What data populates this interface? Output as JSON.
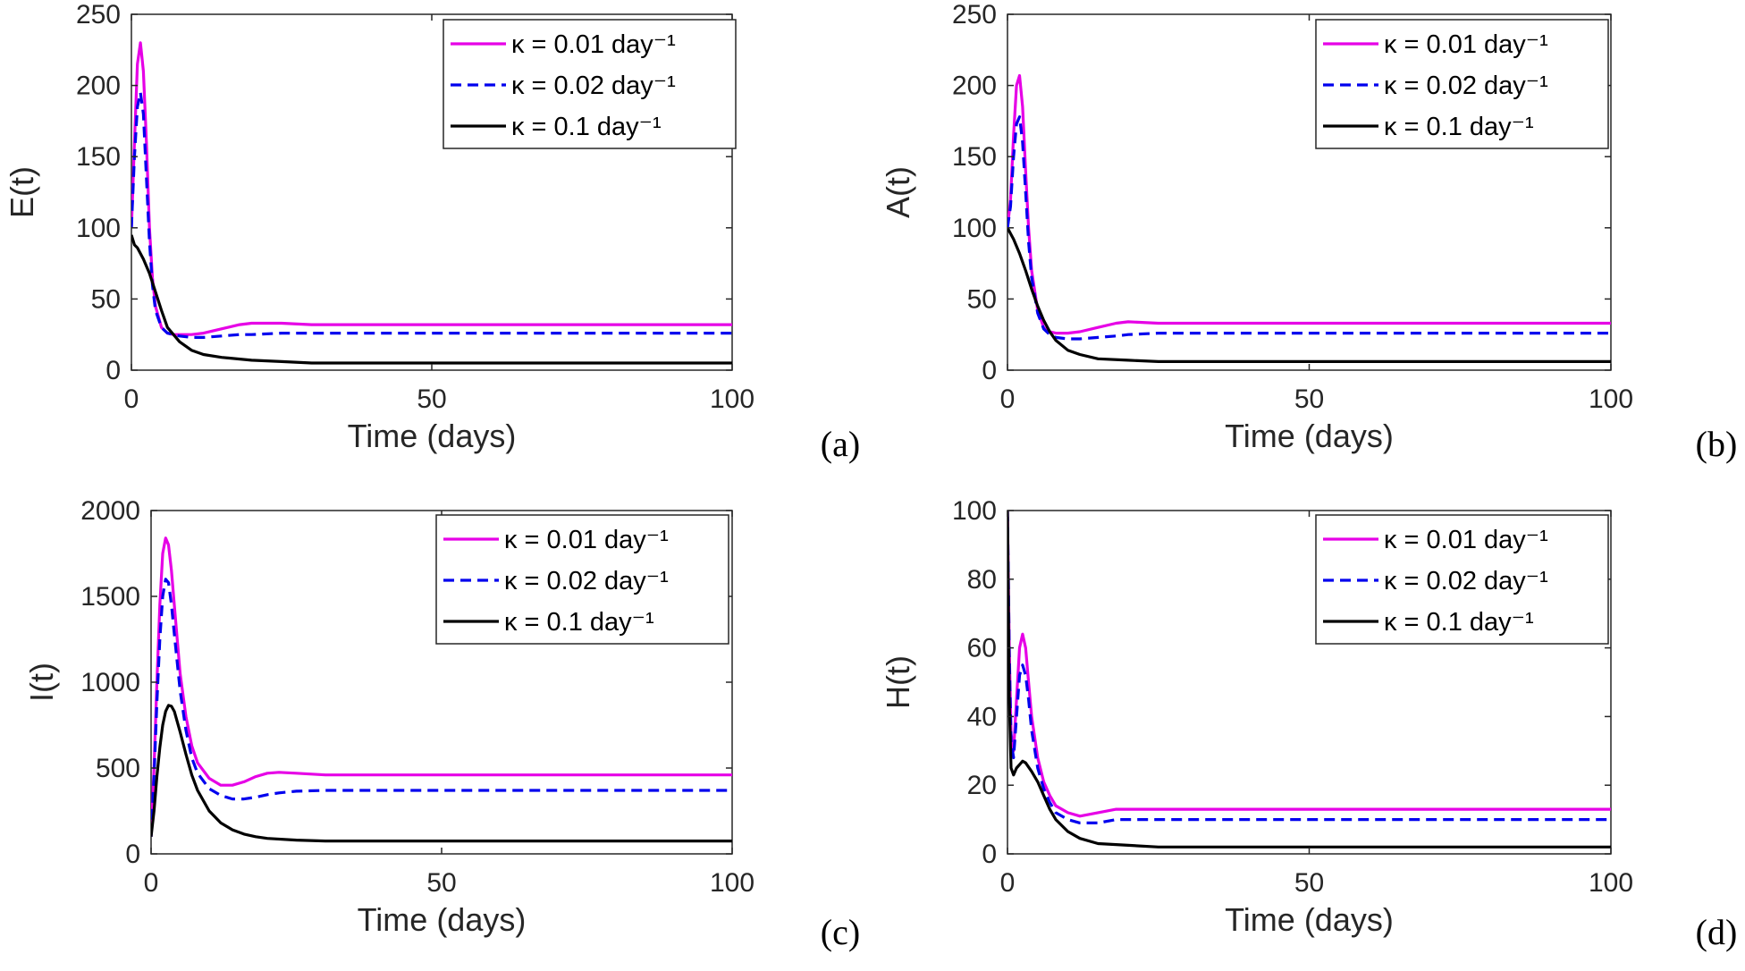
{
  "chart_data": [
    {
      "type": "line",
      "panel_label": "(a)",
      "xlabel": "Time (days)",
      "ylabel": "E(t)",
      "xlim": [
        0,
        100
      ],
      "ylim": [
        0,
        250
      ],
      "xticks": [
        0,
        50,
        100
      ],
      "yticks": [
        0,
        50,
        100,
        150,
        200,
        250
      ],
      "legend": "top-right",
      "series": [
        {
          "name": "κ = 0.01 day⁻¹",
          "color": "#e600e6",
          "dash": "solid",
          "x": [
            0,
            0.5,
            1,
            1.5,
            2,
            2.5,
            3,
            3.5,
            4,
            5,
            6,
            7,
            8,
            10,
            12,
            15,
            18,
            20,
            25,
            30,
            40,
            60,
            80,
            100
          ],
          "y": [
            100,
            160,
            215,
            230,
            210,
            160,
            100,
            65,
            45,
            30,
            26,
            25,
            25,
            25,
            26,
            29,
            32,
            33,
            33,
            32,
            32,
            32,
            32,
            32
          ]
        },
        {
          "name": "κ = 0.02 day⁻¹",
          "color": "#0000ee",
          "dash": "dashed",
          "x": [
            0,
            0.5,
            1,
            1.5,
            2,
            2.5,
            3,
            3.5,
            4,
            5,
            6,
            7,
            8,
            10,
            12,
            15,
            18,
            20,
            25,
            30,
            40,
            60,
            80,
            100
          ],
          "y": [
            100,
            150,
            185,
            195,
            180,
            135,
            90,
            60,
            42,
            30,
            26,
            25,
            24,
            23,
            23,
            24,
            25,
            25,
            26,
            26,
            26,
            26,
            26,
            26
          ]
        },
        {
          "name": "κ = 0.1 day⁻¹",
          "color": "#000000",
          "dash": "solid",
          "x": [
            0,
            0.5,
            1,
            2,
            3,
            4,
            5,
            6,
            8,
            10,
            12,
            15,
            20,
            25,
            30,
            40,
            50,
            60,
            80,
            100
          ],
          "y": [
            95,
            88,
            86,
            78,
            68,
            55,
            42,
            30,
            20,
            14,
            11,
            9,
            7,
            6,
            5,
            5,
            5,
            5,
            5,
            5
          ]
        }
      ]
    },
    {
      "type": "line",
      "panel_label": "(b)",
      "xlabel": "Time (days)",
      "ylabel": "A(t)",
      "xlim": [
        0,
        100
      ],
      "ylim": [
        0,
        250
      ],
      "xticks": [
        0,
        50,
        100
      ],
      "yticks": [
        0,
        50,
        100,
        150,
        200,
        250
      ],
      "legend": "top-right",
      "series": [
        {
          "name": "κ = 0.01 day⁻¹",
          "color": "#e600e6",
          "dash": "solid",
          "x": [
            0,
            0.5,
            1,
            1.5,
            2,
            2.5,
            3,
            3.5,
            4,
            5,
            6,
            7,
            8,
            10,
            12,
            15,
            18,
            20,
            25,
            30,
            40,
            60,
            80,
            100
          ],
          "y": [
            100,
            120,
            165,
            200,
            207,
            185,
            140,
            100,
            70,
            42,
            30,
            27,
            26,
            26,
            27,
            30,
            33,
            34,
            33,
            33,
            33,
            33,
            33,
            33
          ]
        },
        {
          "name": "κ = 0.02 day⁻¹",
          "color": "#0000ee",
          "dash": "dashed",
          "x": [
            0,
            0.5,
            1,
            1.5,
            2,
            2.5,
            3,
            3.5,
            4,
            5,
            6,
            7,
            8,
            10,
            12,
            15,
            18,
            20,
            25,
            30,
            40,
            60,
            80,
            100
          ],
          "y": [
            100,
            115,
            150,
            173,
            178,
            160,
            125,
            90,
            65,
            40,
            29,
            25,
            23,
            22,
            22,
            23,
            24,
            25,
            26,
            26,
            26,
            26,
            26,
            26
          ]
        },
        {
          "name": "κ = 0.1 day⁻¹",
          "color": "#000000",
          "dash": "solid",
          "x": [
            0,
            0.5,
            1,
            2,
            3,
            4,
            5,
            6,
            7,
            8,
            10,
            12,
            15,
            20,
            25,
            30,
            40,
            50,
            60,
            80,
            100
          ],
          "y": [
            100,
            96,
            92,
            82,
            70,
            57,
            45,
            35,
            27,
            21,
            14,
            11,
            8,
            7,
            6,
            6,
            6,
            6,
            6,
            6,
            6
          ]
        }
      ]
    },
    {
      "type": "line",
      "panel_label": "(c)",
      "xlabel": "Time (days)",
      "ylabel": "I(t)",
      "xlim": [
        0,
        100
      ],
      "ylim": [
        0,
        2000
      ],
      "xticks": [
        0,
        50,
        100
      ],
      "yticks": [
        0,
        500,
        1000,
        1500,
        2000
      ],
      "legend": "top-right",
      "series": [
        {
          "name": "κ = 0.01 day⁻¹",
          "color": "#e600e6",
          "dash": "solid",
          "x": [
            0,
            0.5,
            1,
            1.5,
            2,
            2.5,
            3,
            3.5,
            4,
            5,
            6,
            7,
            8,
            10,
            12,
            14,
            16,
            18,
            20,
            22,
            25,
            30,
            40,
            60,
            80,
            100
          ],
          "y": [
            100,
            500,
            1000,
            1450,
            1750,
            1840,
            1800,
            1650,
            1450,
            1050,
            800,
            630,
            530,
            440,
            400,
            400,
            420,
            450,
            470,
            475,
            470,
            460,
            460,
            460,
            460,
            460
          ]
        },
        {
          "name": "κ = 0.02 day⁻¹",
          "color": "#0000ee",
          "dash": "dashed",
          "x": [
            0,
            0.5,
            1,
            1.5,
            2,
            2.5,
            3,
            3.5,
            4,
            5,
            6,
            7,
            8,
            10,
            12,
            14,
            16,
            18,
            20,
            22,
            25,
            30,
            40,
            60,
            80,
            100
          ],
          "y": [
            100,
            450,
            880,
            1250,
            1500,
            1600,
            1580,
            1450,
            1280,
            950,
            720,
            560,
            470,
            380,
            340,
            320,
            320,
            330,
            345,
            355,
            365,
            370,
            370,
            370,
            370,
            370
          ]
        },
        {
          "name": "κ = 0.1 day⁻¹",
          "color": "#000000",
          "dash": "solid",
          "x": [
            0,
            0.5,
            1,
            1.5,
            2,
            2.5,
            3,
            3.5,
            4,
            5,
            6,
            7,
            8,
            10,
            12,
            14,
            16,
            18,
            20,
            25,
            30,
            40,
            60,
            80,
            100
          ],
          "y": [
            100,
            250,
            450,
            620,
            750,
            830,
            865,
            860,
            830,
            710,
            580,
            460,
            370,
            250,
            180,
            140,
            115,
            100,
            90,
            80,
            75,
            75,
            75,
            75,
            75
          ]
        }
      ]
    },
    {
      "type": "line",
      "panel_label": "(d)",
      "xlabel": "Time (days)",
      "ylabel": "H(t)",
      "xlim": [
        0,
        100
      ],
      "ylim": [
        0,
        100
      ],
      "xticks": [
        0,
        50,
        100
      ],
      "yticks": [
        0,
        20,
        40,
        60,
        80,
        100
      ],
      "legend": "top-right",
      "series": [
        {
          "name": "κ = 0.01 day⁻¹",
          "color": "#e600e6",
          "dash": "solid",
          "x": [
            0,
            0.3,
            0.6,
            1,
            1.5,
            2,
            2.5,
            3,
            3.5,
            4,
            5,
            6,
            7,
            8,
            10,
            12,
            15,
            18,
            20,
            25,
            30,
            40,
            60,
            80,
            100
          ],
          "y": [
            100,
            60,
            35,
            30,
            45,
            60,
            64,
            60,
            50,
            40,
            28,
            21,
            17,
            14,
            12,
            11,
            12,
            13,
            13,
            13,
            13,
            13,
            13,
            13,
            13
          ]
        },
        {
          "name": "κ = 0.02 day⁻¹",
          "color": "#0000ee",
          "dash": "dashed",
          "x": [
            0,
            0.3,
            0.6,
            1,
            1.5,
            2,
            2.5,
            3,
            3.5,
            4,
            5,
            6,
            7,
            8,
            10,
            12,
            15,
            18,
            20,
            25,
            30,
            40,
            60,
            80,
            100
          ],
          "y": [
            100,
            58,
            33,
            28,
            40,
            52,
            55,
            52,
            45,
            36,
            25,
            19,
            15,
            12,
            10,
            9,
            9,
            10,
            10,
            10,
            10,
            10,
            10,
            10,
            10
          ]
        },
        {
          "name": "κ = 0.1 day⁻¹",
          "color": "#000000",
          "dash": "solid",
          "x": [
            0,
            0.3,
            0.6,
            1,
            1.5,
            2,
            2.5,
            3,
            4,
            5,
            6,
            7,
            8,
            10,
            12,
            15,
            20,
            25,
            30,
            40,
            60,
            80,
            100
          ],
          "y": [
            100,
            45,
            25,
            23,
            25,
            26,
            27,
            26.5,
            24,
            21,
            17,
            13,
            10,
            6.5,
            4.5,
            3,
            2.5,
            2,
            2,
            2,
            2,
            2,
            2
          ]
        }
      ]
    }
  ]
}
